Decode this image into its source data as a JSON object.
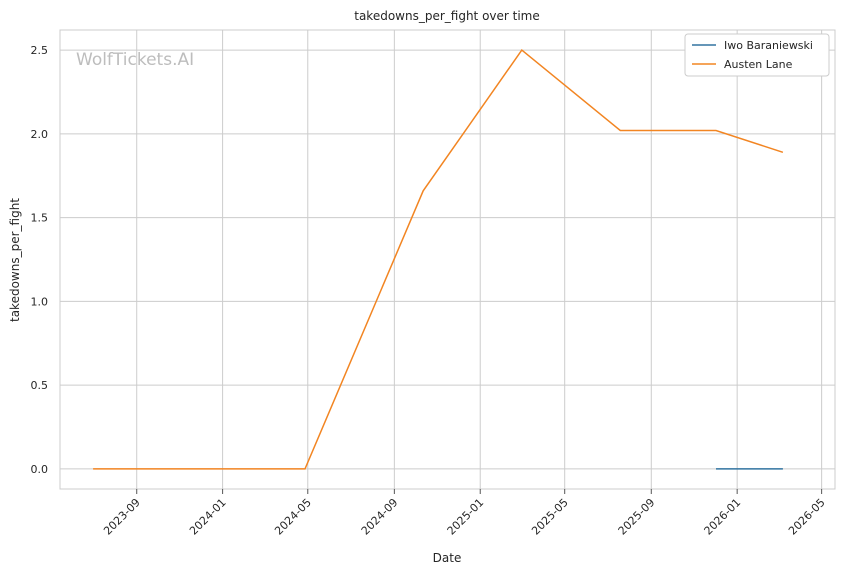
{
  "chart_data": {
    "type": "line",
    "title": "takedowns_per_fight over time",
    "xlabel": "Date",
    "ylabel": "takedowns_per_fight",
    "watermark": "WolfTickets.AI",
    "x_ticks": [
      "2023-09",
      "2024-01",
      "2024-05",
      "2024-09",
      "2025-01",
      "2025-05",
      "2025-09",
      "2026-01",
      "2026-05"
    ],
    "y_ticks": [
      0.0,
      0.5,
      1.0,
      1.5,
      2.0,
      2.5
    ],
    "xlim": [
      "2023-05-15",
      "2026-05-20"
    ],
    "ylim": [
      -0.12,
      2.62
    ],
    "grid": true,
    "legend_position": "top-right",
    "series": [
      {
        "name": "Iwo Baraniewski",
        "color": "#3274a1",
        "points": [
          {
            "x": "2025-12-02",
            "y": 0.0
          },
          {
            "x": "2026-03-07",
            "y": 0.0
          }
        ]
      },
      {
        "name": "Austen Lane",
        "color": "#f28522",
        "points": [
          {
            "x": "2023-07-01",
            "y": 0.0
          },
          {
            "x": "2024-04-27",
            "y": 0.0
          },
          {
            "x": "2024-10-12",
            "y": 1.66
          },
          {
            "x": "2025-03-01",
            "y": 2.5
          },
          {
            "x": "2025-07-19",
            "y": 2.02
          },
          {
            "x": "2025-12-02",
            "y": 2.02
          },
          {
            "x": "2026-03-07",
            "y": 1.89
          }
        ]
      }
    ]
  }
}
